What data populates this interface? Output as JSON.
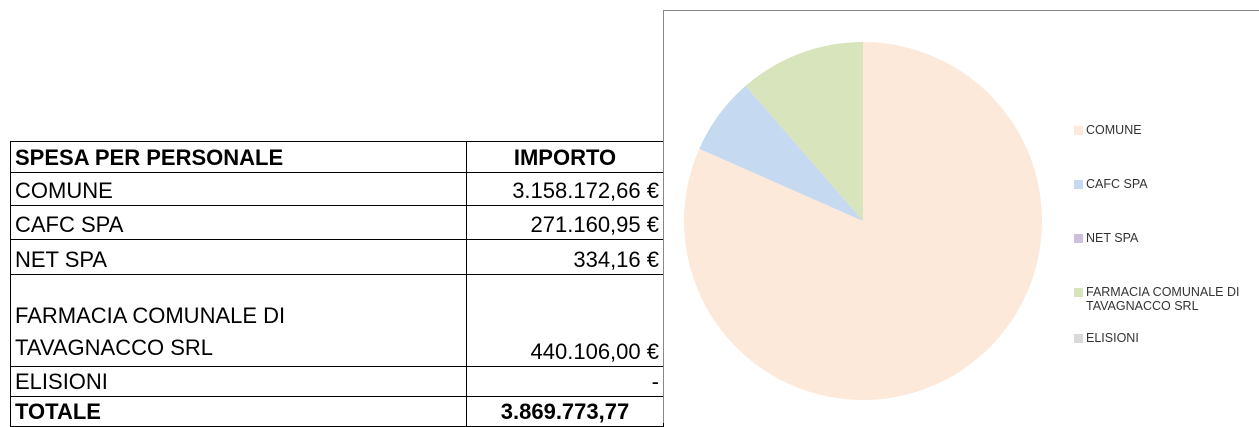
{
  "table": {
    "header": [
      "SPESA PER PERSONALE",
      "IMPORTO"
    ],
    "rows": [
      [
        "COMUNE",
        "3.158.172,66 €"
      ],
      [
        "CAFC SPA",
        "271.160,95 €"
      ],
      [
        "NET SPA",
        "334,16 €"
      ],
      [
        "FARMACIA COMUNALE DI TAVAGNACCO SRL",
        "440.106,00 €"
      ],
      [
        "ELISIONI",
        "-"
      ]
    ],
    "total": [
      "TOTALE",
      "3.869.773,77"
    ]
  },
  "chart_data": {
    "type": "pie",
    "categories": [
      "COMUNE",
      "CAFC SPA",
      "NET SPA",
      "FARMACIA COMUNALE DI TAVAGNACCO SRL",
      "ELISIONI"
    ],
    "values": [
      3158172.66,
      271160.95,
      334.16,
      440106.0,
      0
    ],
    "colors": [
      "#fde9d9",
      "#c5d9f1",
      "#ccc0da",
      "#d7e4bc",
      "#d9d9d9"
    ],
    "legend": "right"
  }
}
